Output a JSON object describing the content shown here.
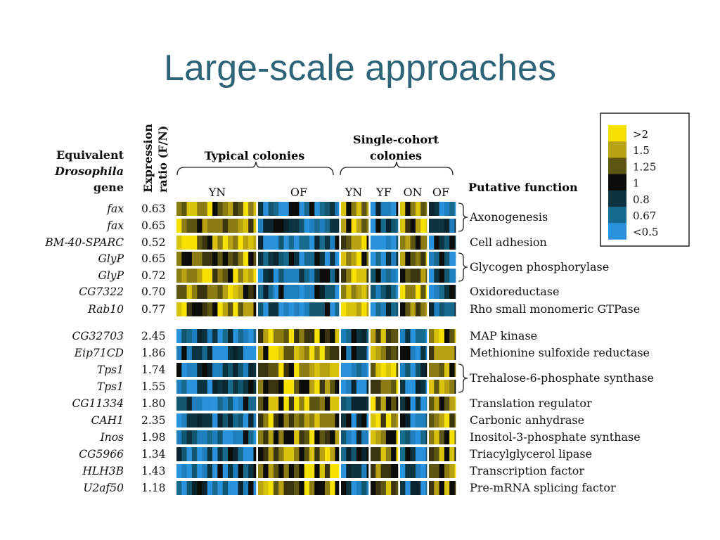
{
  "slide": {
    "title": "Large-scale approaches"
  },
  "headers": {
    "gene_col": [
      "Equivalent",
      "Drosophila",
      "gene"
    ],
    "ratio_col": [
      "Expression",
      "ratio (F/N)"
    ],
    "typical_colonies": "Typical colonies",
    "single_cohort": [
      "Single-cohort",
      "colonies"
    ],
    "putative_function": "Putative function"
  },
  "conditions": {
    "typical": [
      "YN",
      "OF"
    ],
    "single_cohort": [
      "YN",
      "YF",
      "ON",
      "OF"
    ]
  },
  "legend": {
    "labels": [
      ">2",
      "1.5",
      "1.25",
      "1",
      "0.8",
      "0.67",
      "<0.5"
    ],
    "colors": [
      "#f6e000",
      "#b8a213",
      "#5d5512",
      "#0c0c08",
      "#0c3440",
      "#176a8e",
      "#2a92dc"
    ]
  },
  "genes": [
    {
      "name": "fax",
      "ratio": "0.63"
    },
    {
      "name": "fax",
      "ratio": "0.65"
    },
    {
      "name": "BM-40-SPARC",
      "ratio": "0.52"
    },
    {
      "name": "GlyP",
      "ratio": "0.65"
    },
    {
      "name": "GlyP",
      "ratio": "0.72"
    },
    {
      "name": "CG7322",
      "ratio": "0.70"
    },
    {
      "name": "Rab10",
      "ratio": "0.77"
    },
    {
      "name": "CG32703",
      "ratio": "2.45"
    },
    {
      "name": "Eip71CD",
      "ratio": "1.86"
    },
    {
      "name": "Tps1",
      "ratio": "1.74"
    },
    {
      "name": "Tps1",
      "ratio": "1.55"
    },
    {
      "name": "CG11334",
      "ratio": "1.80"
    },
    {
      "name": "CAH1",
      "ratio": "2.35"
    },
    {
      "name": "Inos",
      "ratio": "1.98"
    },
    {
      "name": "CG5966",
      "ratio": "1.34"
    },
    {
      "name": "HLH3B",
      "ratio": "1.43"
    },
    {
      "name": "U2af50",
      "ratio": "1.18"
    }
  ],
  "functions": [
    {
      "label": "Axonogenesis",
      "rows": [
        0,
        1
      ]
    },
    {
      "label": "Cell adhesion",
      "rows": [
        2
      ]
    },
    {
      "label": "Glycogen phosphorylase",
      "rows": [
        3,
        4
      ]
    },
    {
      "label": "Oxidoreductase",
      "rows": [
        5
      ]
    },
    {
      "label": "Rho small monomeric GTPase",
      "rows": [
        6
      ]
    },
    {
      "label": "MAP kinase",
      "rows": [
        7
      ]
    },
    {
      "label": "Methionine sulfoxide reductase",
      "rows": [
        8
      ]
    },
    {
      "label": "Trehalose-6-phosphate synthase",
      "rows": [
        9,
        10
      ]
    },
    {
      "label": "Translation regulator",
      "rows": [
        11
      ]
    },
    {
      "label": "Carbonic anhydrase",
      "rows": [
        12
      ]
    },
    {
      "label": "Inositol-3-phosphate synthase",
      "rows": [
        13
      ]
    },
    {
      "label": "Triacylglycerol lipase",
      "rows": [
        14
      ]
    },
    {
      "label": "Transcription factor",
      "rows": [
        15
      ]
    },
    {
      "label": "Pre-mRNA splicing factor",
      "rows": [
        16
      ]
    }
  ]
}
